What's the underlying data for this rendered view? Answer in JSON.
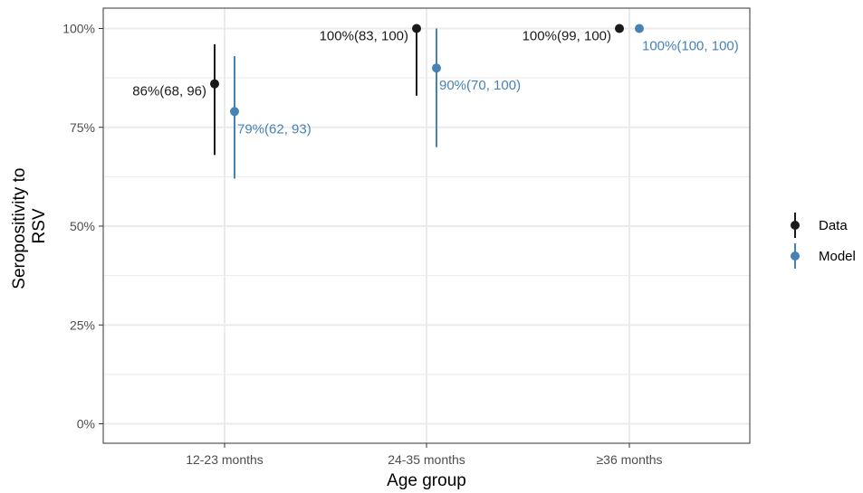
{
  "chart_data": {
    "type": "scatter",
    "title": "",
    "xlabel": "Age group",
    "ylabel_lines": [
      "Seropositivity to",
      "RSV"
    ],
    "categories": [
      "12-23 months",
      "24-35 months",
      "≥36 months"
    ],
    "ylim": [
      0,
      100
    ],
    "yticks": [
      0,
      25,
      50,
      75,
      100
    ],
    "ytick_labels": [
      "0%",
      "25%",
      "50%",
      "75%",
      "100%"
    ],
    "grid": true,
    "legend_position": "right",
    "series": [
      {
        "name": "Data",
        "color": "#1a1a1a",
        "values": [
          86,
          100,
          100
        ],
        "lower": [
          68,
          83,
          99
        ],
        "upper": [
          96,
          100,
          100
        ],
        "labels": [
          "86%(68, 96)",
          "100%(83, 100)",
          "100%(99, 100)"
        ]
      },
      {
        "name": "Model",
        "color": "#4682b4",
        "values": [
          79,
          90,
          100
        ],
        "lower": [
          62,
          70,
          100
        ],
        "upper": [
          93,
          100,
          100
        ],
        "labels": [
          "79%(62, 93)",
          "90%(70, 100)",
          "100%(100, 100)"
        ]
      }
    ]
  }
}
